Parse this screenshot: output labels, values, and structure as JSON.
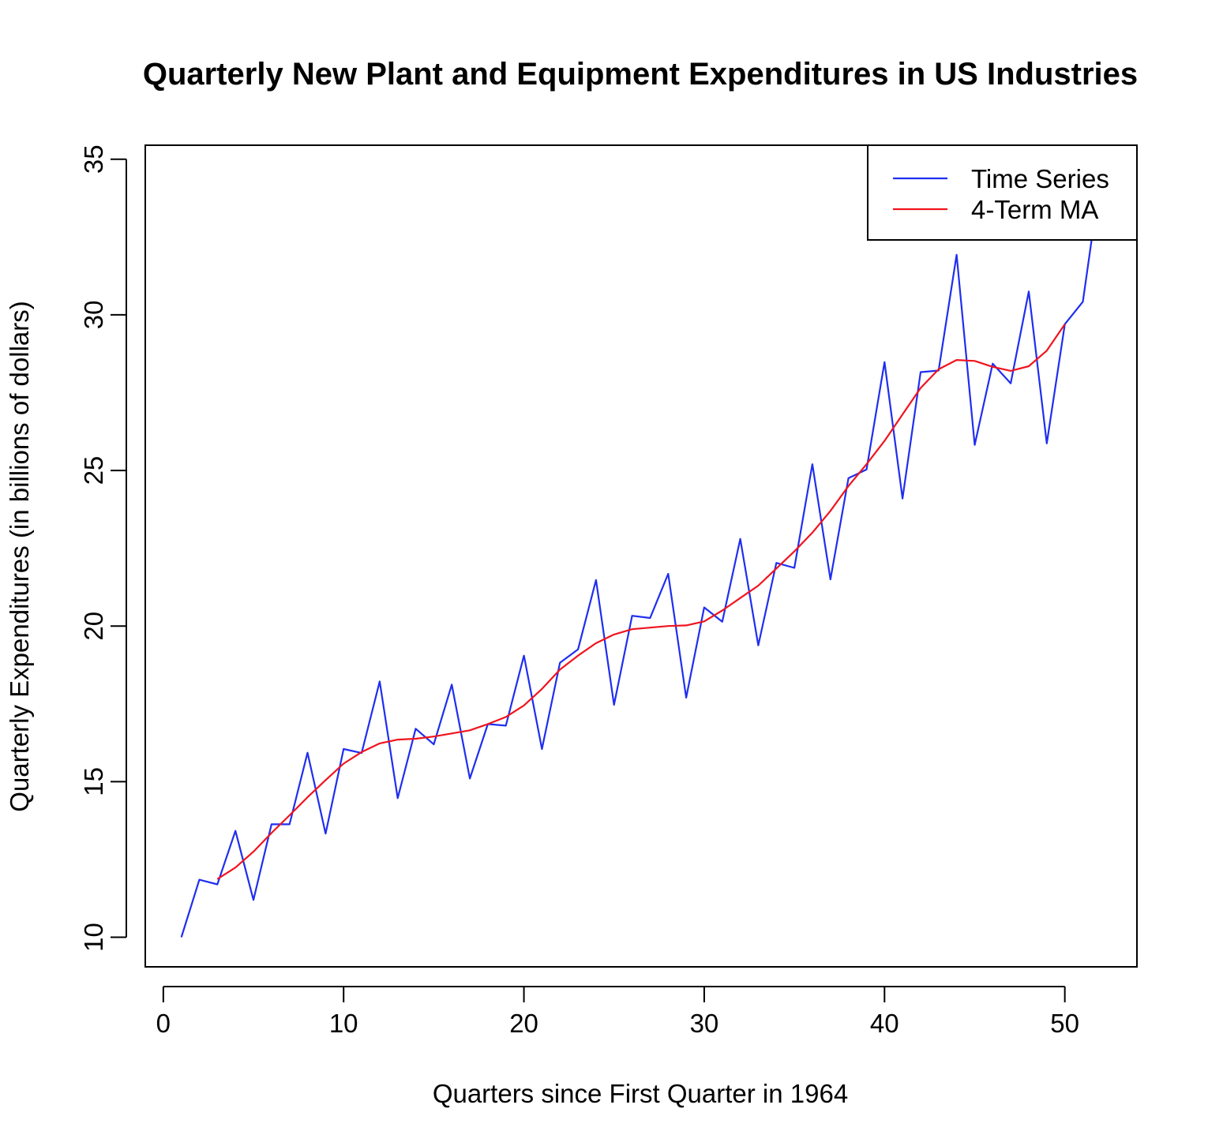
{
  "chart_data": {
    "type": "line",
    "title": "Quarterly New Plant and Equipment Expenditures in US Industries",
    "xlabel": "Quarters since First Quarter in 1964",
    "ylabel": "Quarterly Expenditures (in billions of dollars)",
    "xlim": [
      -1,
      54
    ],
    "ylim": [
      9.05,
      35.45
    ],
    "xticks": [
      0,
      10,
      20,
      30,
      40,
      50
    ],
    "yticks": [
      10,
      15,
      20,
      25,
      30,
      35
    ],
    "grid": false,
    "legend_position": "top-right",
    "colors": {
      "series": "#1f2ef0",
      "ma": "#f0141e",
      "axis": "#000000"
    },
    "series": [
      {
        "name": "Time Series",
        "x": [
          1,
          2,
          3,
          4,
          5,
          6,
          7,
          8,
          9,
          10,
          11,
          12,
          13,
          14,
          15,
          16,
          17,
          18,
          19,
          20,
          21,
          22,
          23,
          24,
          25,
          26,
          27,
          28,
          29,
          30,
          31,
          32,
          33,
          34,
          35,
          36,
          37,
          38,
          39,
          40,
          41,
          42,
          43,
          44,
          45,
          46,
          47,
          48,
          49,
          50,
          51,
          52
        ],
        "values": [
          10.0,
          11.85,
          11.7,
          13.42,
          11.2,
          13.63,
          13.63,
          15.93,
          13.33,
          16.05,
          15.92,
          18.22,
          14.47,
          16.7,
          16.2,
          18.12,
          15.1,
          16.85,
          16.8,
          19.05,
          16.05,
          18.82,
          19.25,
          21.48,
          17.47,
          20.33,
          20.26,
          21.68,
          17.7,
          20.6,
          20.14,
          22.8,
          19.38,
          22.03,
          21.87,
          25.2,
          21.5,
          24.75,
          25.03,
          28.48,
          24.1,
          28.16,
          28.21,
          31.93,
          25.82,
          28.43,
          27.8,
          30.75,
          25.87,
          29.7,
          30.42,
          34.5
        ]
      },
      {
        "name": "4-Term MA",
        "x": [
          3,
          4,
          5,
          6,
          7,
          8,
          9,
          10,
          11,
          12,
          13,
          14,
          15,
          16,
          17,
          18,
          19,
          20,
          21,
          22,
          23,
          24,
          25,
          26,
          27,
          28,
          29,
          30,
          31,
          32,
          33,
          34,
          35,
          36,
          37,
          38,
          39,
          40,
          41,
          42,
          43,
          44,
          45,
          46,
          47,
          48,
          49,
          50
        ],
        "values": [
          11.87,
          12.24,
          12.75,
          13.35,
          13.92,
          14.5,
          15.05,
          15.58,
          15.95,
          16.23,
          16.35,
          16.38,
          16.45,
          16.55,
          16.65,
          16.85,
          17.08,
          17.45,
          17.98,
          18.6,
          19.05,
          19.45,
          19.73,
          19.9,
          19.95,
          20.0,
          20.02,
          20.15,
          20.5,
          20.9,
          21.3,
          21.85,
          22.4,
          23.0,
          23.7,
          24.5,
          25.2,
          25.95,
          26.8,
          27.65,
          28.25,
          28.55,
          28.52,
          28.33,
          28.2,
          28.35,
          28.85,
          29.7
        ]
      }
    ]
  }
}
